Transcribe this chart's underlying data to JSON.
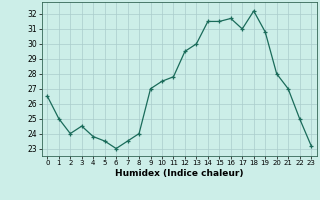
{
  "x": [
    0,
    1,
    2,
    3,
    4,
    5,
    6,
    7,
    8,
    9,
    10,
    11,
    12,
    13,
    14,
    15,
    16,
    17,
    18,
    19,
    20,
    21,
    22,
    23
  ],
  "y": [
    26.5,
    25.0,
    24.0,
    24.5,
    23.8,
    23.5,
    23.0,
    23.5,
    24.0,
    27.0,
    27.5,
    27.8,
    29.5,
    30.0,
    31.5,
    31.5,
    31.7,
    31.0,
    32.2,
    30.8,
    28.0,
    27.0,
    25.0,
    23.2
  ],
  "xlabel": "Humidex (Indice chaleur)",
  "xlim": [
    -0.5,
    23.5
  ],
  "ylim": [
    22.5,
    32.8
  ],
  "yticks": [
    23,
    24,
    25,
    26,
    27,
    28,
    29,
    30,
    31,
    32
  ],
  "xticks": [
    0,
    1,
    2,
    3,
    4,
    5,
    6,
    7,
    8,
    9,
    10,
    11,
    12,
    13,
    14,
    15,
    16,
    17,
    18,
    19,
    20,
    21,
    22,
    23
  ],
  "line_color": "#1a6b5a",
  "marker_color": "#1a6b5a",
  "bg_color": "#cceee8",
  "grid_color": "#aacccc",
  "spine_color": "#336655"
}
